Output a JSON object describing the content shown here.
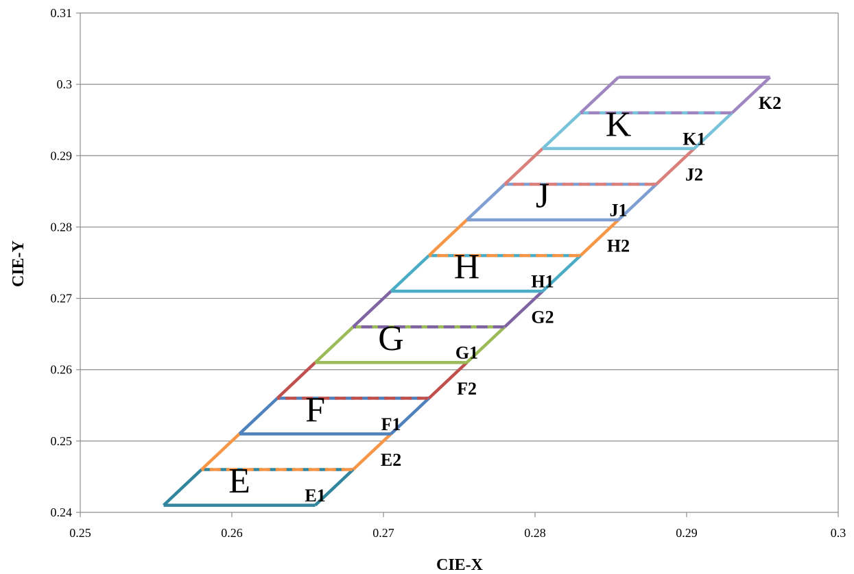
{
  "chart_data": {
    "type": "line",
    "xlabel": "CIE-X",
    "ylabel": "CIE-Y",
    "xlim": [
      0.25,
      0.3
    ],
    "ylim": [
      0.24,
      0.31
    ],
    "x_ticks": [
      "0.25",
      "0.26",
      "0.27",
      "0.28",
      "0.29",
      "0.3"
    ],
    "y_ticks": [
      "0.24",
      "0.25",
      "0.26",
      "0.27",
      "0.28",
      "0.29",
      "0.3",
      "0.31"
    ],
    "grid": "horizontal",
    "segments": [
      {
        "name": "E1-bottom",
        "color": "#31859C",
        "dashed": false,
        "points": [
          [
            0.2555,
            0.241
          ],
          [
            0.2655,
            0.241
          ]
        ]
      },
      {
        "name": "E1-left",
        "color": "#31859C",
        "dashed": false,
        "points": [
          [
            0.2555,
            0.241
          ],
          [
            0.258,
            0.246
          ]
        ]
      },
      {
        "name": "E1-right",
        "color": "#31859C",
        "dashed": false,
        "points": [
          [
            0.2655,
            0.241
          ],
          [
            0.268,
            0.246
          ]
        ]
      },
      {
        "name": "E1-E2-mid",
        "color": "#31859C",
        "dashed": true,
        "points": [
          [
            0.258,
            0.246
          ],
          [
            0.268,
            0.246
          ]
        ]
      },
      {
        "name": "E2-left",
        "color": "#F79646",
        "dashed": false,
        "points": [
          [
            0.258,
            0.246
          ],
          [
            0.2605,
            0.251
          ]
        ]
      },
      {
        "name": "E2-right",
        "color": "#F79646",
        "dashed": false,
        "points": [
          [
            0.268,
            0.246
          ],
          [
            0.2705,
            0.251
          ]
        ]
      },
      {
        "name": "F1-bottom",
        "color": "#4F81BD",
        "dashed": false,
        "points": [
          [
            0.2605,
            0.251
          ],
          [
            0.2705,
            0.251
          ]
        ]
      },
      {
        "name": "F1-left",
        "color": "#4F81BD",
        "dashed": false,
        "points": [
          [
            0.2605,
            0.251
          ],
          [
            0.263,
            0.256
          ]
        ]
      },
      {
        "name": "F1-right",
        "color": "#4F81BD",
        "dashed": false,
        "points": [
          [
            0.2705,
            0.251
          ],
          [
            0.273,
            0.256
          ]
        ]
      },
      {
        "name": "F1-F2-mid",
        "color": "#4F81BD",
        "dashed": true,
        "points": [
          [
            0.263,
            0.256
          ],
          [
            0.273,
            0.256
          ]
        ]
      },
      {
        "name": "F2-left",
        "color": "#C0504D",
        "dashed": false,
        "points": [
          [
            0.263,
            0.256
          ],
          [
            0.2655,
            0.261
          ]
        ]
      },
      {
        "name": "F2-right",
        "color": "#C0504D",
        "dashed": false,
        "points": [
          [
            0.273,
            0.256
          ],
          [
            0.2755,
            0.261
          ]
        ]
      },
      {
        "name": "G1-bottom",
        "color": "#9BBB59",
        "dashed": false,
        "points": [
          [
            0.2655,
            0.261
          ],
          [
            0.2755,
            0.261
          ]
        ]
      },
      {
        "name": "G1-left",
        "color": "#9BBB59",
        "dashed": false,
        "points": [
          [
            0.2655,
            0.261
          ],
          [
            0.268,
            0.266
          ]
        ]
      },
      {
        "name": "G1-right",
        "color": "#9BBB59",
        "dashed": false,
        "points": [
          [
            0.2755,
            0.261
          ],
          [
            0.278,
            0.266
          ]
        ]
      },
      {
        "name": "G1-G2-mid",
        "color": "#9BBB59",
        "dashed": true,
        "points": [
          [
            0.268,
            0.266
          ],
          [
            0.278,
            0.266
          ]
        ]
      },
      {
        "name": "G2-left",
        "color": "#8064A2",
        "dashed": false,
        "points": [
          [
            0.268,
            0.266
          ],
          [
            0.2705,
            0.271
          ]
        ]
      },
      {
        "name": "G2-right",
        "color": "#8064A2",
        "dashed": false,
        "points": [
          [
            0.278,
            0.266
          ],
          [
            0.2805,
            0.271
          ]
        ]
      },
      {
        "name": "H1-bottom",
        "color": "#4BACC6",
        "dashed": false,
        "points": [
          [
            0.2705,
            0.271
          ],
          [
            0.2805,
            0.271
          ]
        ]
      },
      {
        "name": "H1-left",
        "color": "#4BACC6",
        "dashed": false,
        "points": [
          [
            0.2705,
            0.271
          ],
          [
            0.273,
            0.276
          ]
        ]
      },
      {
        "name": "H1-right",
        "color": "#4BACC6",
        "dashed": false,
        "points": [
          [
            0.2805,
            0.271
          ],
          [
            0.283,
            0.276
          ]
        ]
      },
      {
        "name": "H1-H2-mid",
        "color": "#4BACC6",
        "dashed": true,
        "points": [
          [
            0.273,
            0.276
          ],
          [
            0.283,
            0.276
          ]
        ]
      },
      {
        "name": "H2-left",
        "color": "#F79646",
        "dashed": false,
        "points": [
          [
            0.273,
            0.276
          ],
          [
            0.2755,
            0.281
          ]
        ]
      },
      {
        "name": "H2-right",
        "color": "#F79646",
        "dashed": false,
        "points": [
          [
            0.283,
            0.276
          ],
          [
            0.2855,
            0.281
          ]
        ]
      },
      {
        "name": "J1-bottom",
        "color": "#7F9FD2",
        "dashed": false,
        "points": [
          [
            0.2755,
            0.281
          ],
          [
            0.2855,
            0.281
          ]
        ]
      },
      {
        "name": "J1-left",
        "color": "#7F9FD2",
        "dashed": false,
        "points": [
          [
            0.2755,
            0.281
          ],
          [
            0.278,
            0.286
          ]
        ]
      },
      {
        "name": "J1-right",
        "color": "#7F9FD2",
        "dashed": false,
        "points": [
          [
            0.2855,
            0.281
          ],
          [
            0.288,
            0.286
          ]
        ]
      },
      {
        "name": "J1-J2-mid",
        "color": "#7F9FD2",
        "dashed": true,
        "points": [
          [
            0.278,
            0.286
          ],
          [
            0.288,
            0.286
          ]
        ]
      },
      {
        "name": "J2-left",
        "color": "#D9807C",
        "dashed": false,
        "points": [
          [
            0.278,
            0.286
          ],
          [
            0.2805,
            0.291
          ]
        ]
      },
      {
        "name": "J2-right",
        "color": "#D9807C",
        "dashed": false,
        "points": [
          [
            0.288,
            0.286
          ],
          [
            0.2905,
            0.291
          ]
        ]
      },
      {
        "name": "K1-bottom",
        "color": "#78C3DA",
        "dashed": false,
        "points": [
          [
            0.2805,
            0.291
          ],
          [
            0.2905,
            0.291
          ]
        ]
      },
      {
        "name": "K1-left",
        "color": "#78C3DA",
        "dashed": false,
        "points": [
          [
            0.2805,
            0.291
          ],
          [
            0.283,
            0.296
          ]
        ]
      },
      {
        "name": "K1-right",
        "color": "#78C3DA",
        "dashed": false,
        "points": [
          [
            0.2905,
            0.291
          ],
          [
            0.293,
            0.296
          ]
        ]
      },
      {
        "name": "K1-K2-mid",
        "color": "#78C3DA",
        "dashed": true,
        "points": [
          [
            0.283,
            0.296
          ],
          [
            0.293,
            0.296
          ]
        ]
      },
      {
        "name": "K2-left",
        "color": "#9F86C0",
        "dashed": false,
        "points": [
          [
            0.283,
            0.296
          ],
          [
            0.2855,
            0.301
          ]
        ]
      },
      {
        "name": "K2-right",
        "color": "#9F86C0",
        "dashed": false,
        "points": [
          [
            0.293,
            0.296
          ],
          [
            0.2955,
            0.301
          ]
        ]
      },
      {
        "name": "K2-top",
        "color": "#9F86C0",
        "dashed": false,
        "points": [
          [
            0.2855,
            0.301
          ],
          [
            0.2955,
            0.301
          ]
        ]
      }
    ],
    "dash_overlay_color": {
      "E1-E2-mid": "#F79646",
      "F1-F2-mid": "#C0504D",
      "G1-G2-mid": "#8064A2",
      "H1-H2-mid": "#F79646",
      "J1-J2-mid": "#D9807C",
      "K1-K2-mid": "#9F86C0"
    },
    "region_labels": [
      {
        "text": "E",
        "x": 0.2605,
        "y": 0.2445
      },
      {
        "text": "F",
        "x": 0.2655,
        "y": 0.2545
      },
      {
        "text": "G",
        "x": 0.2705,
        "y": 0.2645
      },
      {
        "text": "H",
        "x": 0.2755,
        "y": 0.2745
      },
      {
        "text": "J",
        "x": 0.2805,
        "y": 0.2845
      },
      {
        "text": "K",
        "x": 0.2855,
        "y": 0.2945
      }
    ],
    "sub_labels": [
      {
        "text": "E1",
        "x": 0.2655,
        "y": 0.2425
      },
      {
        "text": "E2",
        "x": 0.2705,
        "y": 0.2475
      },
      {
        "text": "F1",
        "x": 0.2705,
        "y": 0.2525
      },
      {
        "text": "F2",
        "x": 0.2755,
        "y": 0.2575
      },
      {
        "text": "G1",
        "x": 0.2755,
        "y": 0.2625
      },
      {
        "text": "G2",
        "x": 0.2805,
        "y": 0.2675
      },
      {
        "text": "H1",
        "x": 0.2805,
        "y": 0.2725
      },
      {
        "text": "H2",
        "x": 0.2855,
        "y": 0.2775
      },
      {
        "text": "J1",
        "x": 0.2855,
        "y": 0.2825
      },
      {
        "text": "J2",
        "x": 0.2905,
        "y": 0.2875
      },
      {
        "text": "K1",
        "x": 0.2905,
        "y": 0.2925
      },
      {
        "text": "K2",
        "x": 0.2955,
        "y": 0.2975
      }
    ]
  }
}
